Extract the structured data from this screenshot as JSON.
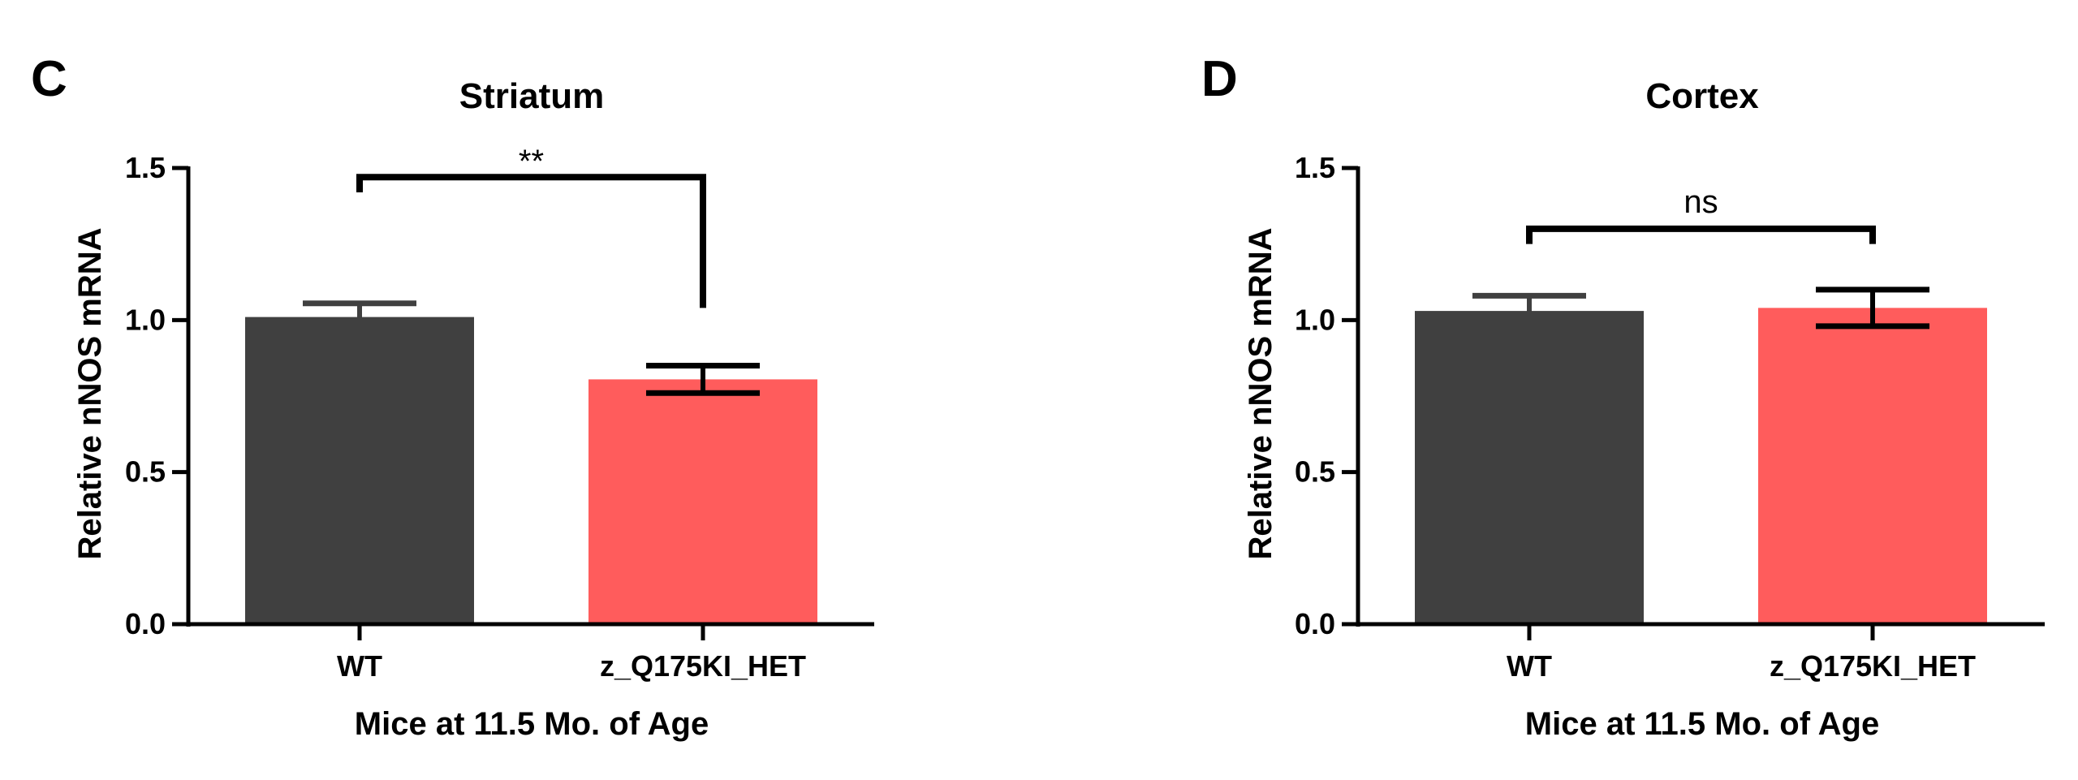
{
  "chart_data": [
    {
      "type": "bar",
      "panel": "C",
      "title": "Striatum",
      "xlabel": "Mice at 11.5 Mo. of Age",
      "ylabel": "Relative nNOS mRNA",
      "ylim": [
        0,
        1.5
      ],
      "yticks": [
        "0.0",
        "0.5",
        "1.0",
        "1.5"
      ],
      "categories": [
        "WT",
        "z_Q175KI_HET"
      ],
      "values": [
        1.01,
        0.805
      ],
      "errors": [
        0.045,
        0.045
      ],
      "colors": [
        "#404040",
        "#ff5c5c"
      ],
      "significance": {
        "label": "**",
        "between": [
          0,
          1
        ]
      },
      "grid": false
    },
    {
      "type": "bar",
      "panel": "D",
      "title": "Cortex",
      "xlabel": "Mice at 11.5 Mo. of Age",
      "ylabel": "Relative nNOS mRNA",
      "ylim": [
        0,
        1.5
      ],
      "yticks": [
        "0.0",
        "0.5",
        "1.0",
        "1.5"
      ],
      "categories": [
        "WT",
        "z_Q175KI_HET"
      ],
      "values": [
        1.03,
        1.04
      ],
      "errors": [
        0.05,
        0.06
      ],
      "colors": [
        "#404040",
        "#ff5c5c"
      ],
      "significance": {
        "label": "ns",
        "between": [
          0,
          1
        ]
      },
      "grid": false
    }
  ]
}
